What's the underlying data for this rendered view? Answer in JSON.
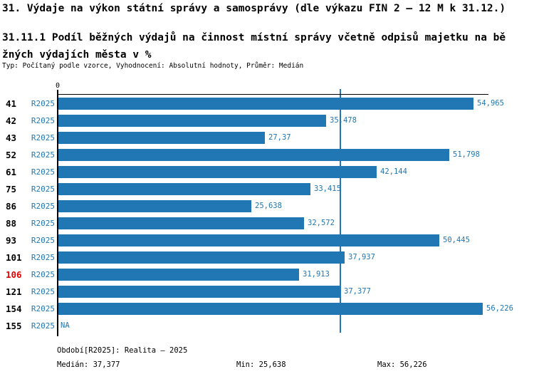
{
  "header": {
    "title": "31. Výdaje na výkon státní správy a samosprávy (dle výkazu FIN 2 – 12 M k 31.12.)",
    "subtitle": "31.11.1 Podíl běžných výdajů na činnost místní správy včetně odpisů majetku na běžných výdajích města v %",
    "meta": "Typ: Počítaný podle vzorce, Vyhodnocení: Absolutní hodnoty, Průměr: Medián"
  },
  "chart_data": {
    "type": "bar",
    "orientation": "horizontal",
    "title": "31.11.1 Podíl běžných výdajů na činnost místní správy včetně odpisů majetku na běžných výdajích města v %",
    "xlabel": "",
    "ylabel": "",
    "zero_tick_label": "0",
    "categories": [
      "41",
      "42",
      "43",
      "52",
      "61",
      "75",
      "86",
      "88",
      "93",
      "101",
      "106",
      "121",
      "154",
      "155"
    ],
    "series_label": "R2025",
    "values": [
      54.965,
      35.478,
      27.37,
      51.798,
      42.144,
      33.415,
      25.638,
      32.572,
      50.445,
      37.937,
      31.913,
      37.377,
      56.226,
      null
    ],
    "value_labels": [
      "54,965",
      "35,478",
      "27,37",
      "51,798",
      "42,144",
      "33,415",
      "25,638",
      "32,572",
      "50,445",
      "37,937",
      "31,913",
      "37,377",
      "56,226",
      "NA"
    ],
    "highlighted_category": "106",
    "median": 37.377,
    "min": 25.638,
    "max": 56.226,
    "xlim": [
      0,
      56.96
    ],
    "grid": false,
    "legend_position": "none",
    "bar_color": "#2177b3",
    "highlight_color": "#e00000",
    "text_color": "#2177b3"
  },
  "footer": {
    "period": "Období[R2025]: Realita – 2025",
    "median": "Medián: 37,377",
    "min": "Min: 25,638",
    "max": "Max: 56,226"
  }
}
